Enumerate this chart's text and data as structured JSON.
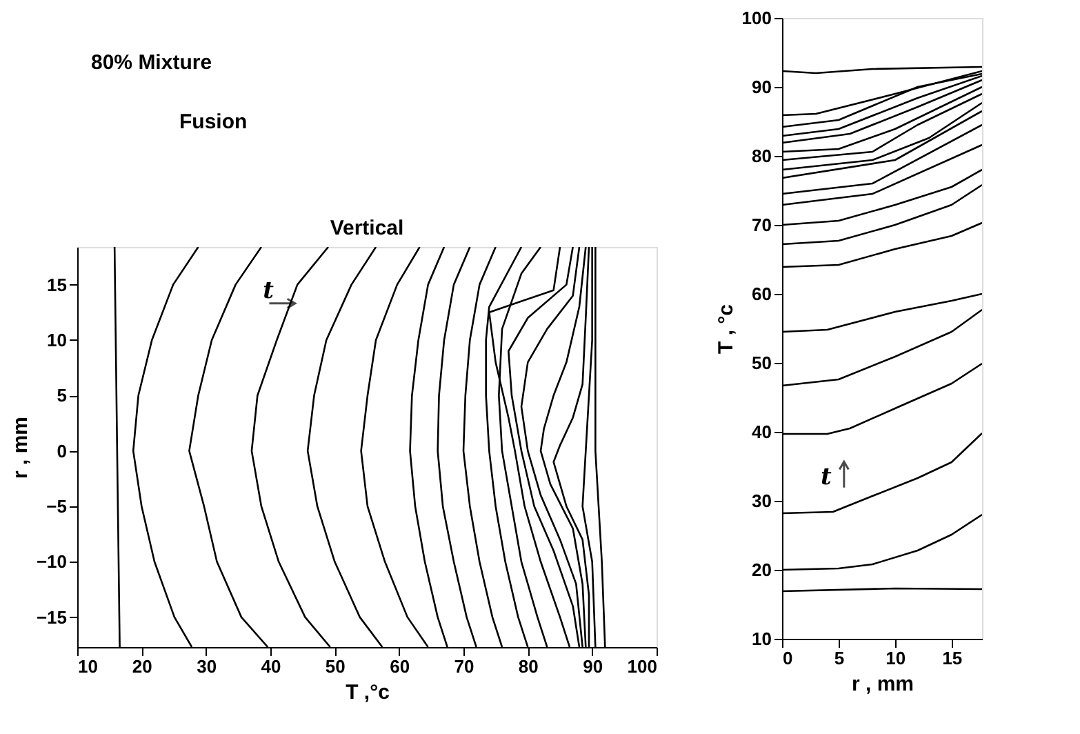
{
  "chart_data": [
    {
      "type": "line",
      "title": "80% Mixture",
      "subtitle": "Fusion",
      "xlabel": "T ,°c",
      "ylabel": "r , mm",
      "annotations": [
        "Vertical",
        "t"
      ],
      "xlim": [
        10,
        100
      ],
      "ylim": [
        -17.7,
        18.4
      ],
      "xticks": [
        10,
        20,
        30,
        40,
        50,
        60,
        70,
        80,
        90,
        100
      ],
      "yticks": [
        -15,
        -10,
        -5,
        0,
        5,
        10,
        15
      ],
      "grid": false,
      "legend": false,
      "marker": "none",
      "line_style": "solid",
      "series": [
        {
          "color": "#000000",
          "x": [
            15.8,
            16.2,
            16.6
          ],
          "values": [
            18.4,
            0,
            -17.7
          ]
        },
        {
          "color": "#000000",
          "x": [
            28.8,
            24.9,
            21.6,
            19.5,
            18.7,
            20,
            22,
            25.1,
            27.8
          ],
          "values": [
            18.4,
            15,
            10,
            5,
            0,
            -5,
            -10,
            -15,
            -17.7
          ]
        },
        {
          "color": "#000000",
          "x": [
            38.6,
            34.6,
            30.9,
            28.8,
            27.4,
            29.7,
            31.7,
            35.5,
            39.6
          ],
          "values": [
            18.4,
            15,
            10,
            5,
            0,
            -5,
            -10,
            -15,
            -17.7
          ]
        },
        {
          "color": "#000000",
          "x": [
            49,
            44.2,
            41,
            38,
            37.1,
            38.6,
            41.3,
            45.4,
            49.3
          ],
          "values": [
            18.4,
            15,
            10,
            5,
            0,
            -5,
            -10,
            -15,
            -17.7
          ]
        },
        {
          "color": "#000000",
          "x": [
            56.4,
            52.6,
            48.7,
            46.8,
            45.8,
            47.3,
            50,
            53.9,
            57.4
          ],
          "values": [
            18.4,
            15,
            10,
            5,
            0,
            -5,
            -10,
            -15,
            -17.7
          ]
        },
        {
          "color": "#000000",
          "x": [
            63.2,
            59.7,
            56.4,
            55.1,
            54.1,
            55.1,
            57.8,
            61.3,
            64.5
          ],
          "values": [
            18.4,
            15,
            10,
            5,
            0,
            -5,
            -10,
            -15,
            -17.7
          ]
        },
        {
          "color": "#000000",
          "x": [
            67,
            64.5,
            63,
            62,
            61.7,
            62.5,
            64,
            66,
            67.5
          ],
          "values": [
            18.4,
            15,
            10,
            5,
            0,
            -5,
            -10,
            -15,
            -17.7
          ]
        },
        {
          "color": "#000000",
          "x": [
            71,
            68.5,
            67,
            66.2,
            66,
            66.8,
            68.5,
            70.5,
            72
          ],
          "values": [
            18.4,
            15,
            10,
            5,
            0,
            -5,
            -10,
            -15,
            -17.7
          ]
        },
        {
          "color": "#000000",
          "x": [
            75,
            72.5,
            71,
            70.3,
            70,
            71,
            72.5,
            74.5,
            76
          ],
          "values": [
            18.4,
            15,
            10,
            5,
            0,
            -5,
            -10,
            -15,
            -17.7
          ]
        },
        {
          "color": "#000000",
          "x": [
            79,
            74,
            73.5,
            73.5,
            74,
            75,
            76.5,
            78.5,
            80
          ],
          "values": [
            18.4,
            13,
            10,
            5,
            0,
            -5,
            -10,
            -15,
            -17.7
          ]
        },
        {
          "color": "#000000",
          "x": [
            82,
            79,
            76,
            75.5,
            76,
            77.5,
            79,
            81.5,
            83
          ],
          "values": [
            18.4,
            16,
            11,
            5,
            0,
            -5,
            -10,
            -15,
            -17.7
          ]
        },
        {
          "color": "#000000",
          "x": [
            85,
            84,
            74,
            75,
            77,
            78,
            79.5,
            82,
            85,
            86.5
          ],
          "values": [
            18.4,
            14.5,
            12.5,
            8,
            3,
            0,
            -5,
            -10,
            -15,
            -17.7
          ]
        },
        {
          "color": "#000000",
          "x": [
            87,
            86,
            80,
            77,
            77.5,
            79,
            81,
            84,
            87,
            88
          ],
          "values": [
            18.4,
            15,
            12,
            9,
            5,
            0,
            -5,
            -9,
            -14,
            -17.7
          ]
        },
        {
          "color": "#000000",
          "x": [
            88,
            87,
            83,
            80,
            79,
            80,
            82,
            85,
            87.5,
            88.5
          ],
          "values": [
            18.4,
            14,
            11,
            8,
            4,
            0,
            -4,
            -8,
            -12,
            -17.7
          ]
        },
        {
          "color": "#000000",
          "x": [
            89,
            88,
            86,
            84,
            82.5,
            82,
            83.5,
            87,
            88.5,
            89
          ],
          "values": [
            18.4,
            13,
            8,
            5,
            2,
            0,
            -3,
            -7,
            -12,
            -17.7
          ]
        },
        {
          "color": "#000000",
          "x": [
            89.5,
            89,
            88.5,
            87,
            85,
            84,
            86,
            88.5,
            89.5,
            89.5
          ],
          "values": [
            18.4,
            12,
            6,
            3,
            0.5,
            -1,
            -5,
            -8,
            -13,
            -17.7
          ]
        },
        {
          "color": "#000000",
          "x": [
            90,
            90,
            89.5,
            89,
            88.5,
            90,
            90.5
          ],
          "values": [
            18.4,
            10,
            5,
            0,
            -5,
            -10,
            -17.7
          ]
        },
        {
          "color": "#000000",
          "x": [
            90.5,
            90.5,
            90.5,
            91.5,
            92
          ],
          "values": [
            18.4,
            10,
            0,
            -10,
            -17.7
          ]
        }
      ]
    },
    {
      "type": "line",
      "xlabel": "r , mm",
      "ylabel": "T , °c",
      "annotations": [
        "t"
      ],
      "xlim": [
        0,
        17.7
      ],
      "ylim": [
        10,
        100
      ],
      "xticks": [
        0,
        5,
        10,
        15
      ],
      "yticks": [
        10,
        20,
        30,
        40,
        50,
        60,
        70,
        80,
        90,
        100
      ],
      "grid": false,
      "legend": false,
      "marker": "none",
      "line_style": "solid",
      "series": [
        {
          "color": "#000000",
          "x": [
            0,
            10,
            17.7
          ],
          "values": [
            16.9,
            17.3,
            17.2
          ]
        },
        {
          "color": "#000000",
          "x": [
            0,
            5,
            8,
            12,
            15,
            17.7
          ],
          "values": [
            20,
            20.2,
            20.8,
            22.8,
            25.1,
            28
          ]
        },
        {
          "color": "#000000",
          "x": [
            0,
            4.5,
            8,
            12,
            15,
            17.7
          ],
          "values": [
            28.2,
            28.4,
            30.7,
            33.3,
            35.6,
            39.8
          ]
        },
        {
          "color": "#000000",
          "x": [
            0,
            4,
            6,
            10,
            15,
            17.7
          ],
          "values": [
            39.7,
            39.7,
            40.5,
            43.4,
            47,
            49.9
          ]
        },
        {
          "color": "#000000",
          "x": [
            0,
            5,
            10,
            15,
            17.7
          ],
          "values": [
            46.7,
            47.6,
            50.9,
            54.5,
            57.7
          ]
        },
        {
          "color": "#000000",
          "x": [
            0,
            4,
            10,
            15,
            17.7
          ],
          "values": [
            54.5,
            54.8,
            57.4,
            59,
            60
          ]
        },
        {
          "color": "#000000",
          "x": [
            0,
            5,
            10,
            15,
            17.7
          ],
          "values": [
            63.9,
            64.2,
            66.5,
            68.4,
            70.3
          ]
        },
        {
          "color": "#000000",
          "x": [
            0,
            5,
            10,
            15,
            17.7
          ],
          "values": [
            67.2,
            67.7,
            70,
            72.9,
            75.8
          ]
        },
        {
          "color": "#000000",
          "x": [
            0,
            5,
            10,
            15,
            17.7
          ],
          "values": [
            70,
            70.6,
            72.9,
            75.5,
            78
          ]
        },
        {
          "color": "#000000",
          "x": [
            0,
            8,
            17.7
          ],
          "values": [
            72.9,
            74.5,
            81.6
          ]
        },
        {
          "color": "#000000",
          "x": [
            0,
            8,
            17.7
          ],
          "values": [
            74.5,
            76,
            84.5
          ]
        },
        {
          "color": "#000000",
          "x": [
            0,
            10,
            17.7
          ],
          "values": [
            76.8,
            79.4,
            86.5
          ]
        },
        {
          "color": "#000000",
          "x": [
            0,
            8,
            13,
            17.7
          ],
          "values": [
            78,
            79.4,
            82.6,
            87.7
          ]
        },
        {
          "color": "#000000",
          "x": [
            0,
            8,
            12,
            17.7
          ],
          "values": [
            79.4,
            80.6,
            84.5,
            89
          ]
        },
        {
          "color": "#000000",
          "x": [
            0,
            5,
            10,
            17.7
          ],
          "values": [
            80.6,
            81,
            83.9,
            90
          ]
        },
        {
          "color": "#000000",
          "x": [
            0,
            6,
            12,
            17.7
          ],
          "values": [
            81.9,
            83.2,
            87.1,
            91
          ]
        },
        {
          "color": "#000000",
          "x": [
            0,
            5,
            12,
            17.7
          ],
          "values": [
            82.9,
            83.9,
            88.4,
            91.6
          ]
        },
        {
          "color": "#000000",
          "x": [
            0,
            5,
            12,
            17.7
          ],
          "values": [
            84.2,
            85.2,
            90,
            91.9
          ]
        },
        {
          "color": "#000000",
          "x": [
            0,
            3,
            10,
            17.7
          ],
          "values": [
            85.9,
            86.1,
            89,
            92.3
          ]
        },
        {
          "color": "#000000",
          "x": [
            0,
            3,
            8,
            17.7
          ],
          "values": [
            92.3,
            92,
            92.6,
            92.9
          ]
        }
      ]
    }
  ]
}
